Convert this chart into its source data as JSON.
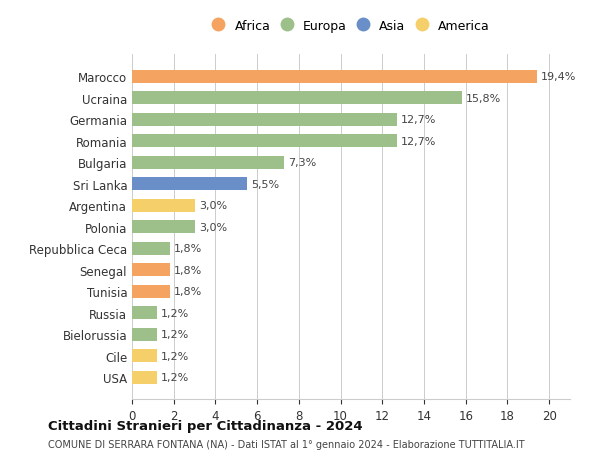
{
  "countries": [
    "Marocco",
    "Ucraina",
    "Germania",
    "Romania",
    "Bulgaria",
    "Sri Lanka",
    "Argentina",
    "Polonia",
    "Repubblica Ceca",
    "Senegal",
    "Tunisia",
    "Russia",
    "Bielorussia",
    "Cile",
    "USA"
  ],
  "values": [
    19.4,
    15.8,
    12.7,
    12.7,
    7.3,
    5.5,
    3.0,
    3.0,
    1.8,
    1.8,
    1.8,
    1.2,
    1.2,
    1.2,
    1.2
  ],
  "labels": [
    "19,4%",
    "15,8%",
    "12,7%",
    "12,7%",
    "7,3%",
    "5,5%",
    "3,0%",
    "3,0%",
    "1,8%",
    "1,8%",
    "1,8%",
    "1,2%",
    "1,2%",
    "1,2%",
    "1,2%"
  ],
  "continents": [
    "Africa",
    "Europa",
    "Europa",
    "Europa",
    "Europa",
    "Asia",
    "America",
    "Europa",
    "Europa",
    "Africa",
    "Africa",
    "Europa",
    "Europa",
    "America",
    "America"
  ],
  "colors": {
    "Africa": "#F4A460",
    "Europa": "#9DC08B",
    "Asia": "#6A8FC8",
    "America": "#F5D06A"
  },
  "legend_order": [
    "Africa",
    "Europa",
    "Asia",
    "America"
  ],
  "title": "Cittadini Stranieri per Cittadinanza - 2024",
  "subtitle": "COMUNE DI SERRARA FONTANA (NA) - Dati ISTAT al 1° gennaio 2024 - Elaborazione TUTTITALIA.IT",
  "xlim": [
    0,
    21
  ],
  "xticks": [
    0,
    2,
    4,
    6,
    8,
    10,
    12,
    14,
    16,
    18,
    20
  ],
  "background_color": "#ffffff",
  "grid_color": "#cccccc"
}
